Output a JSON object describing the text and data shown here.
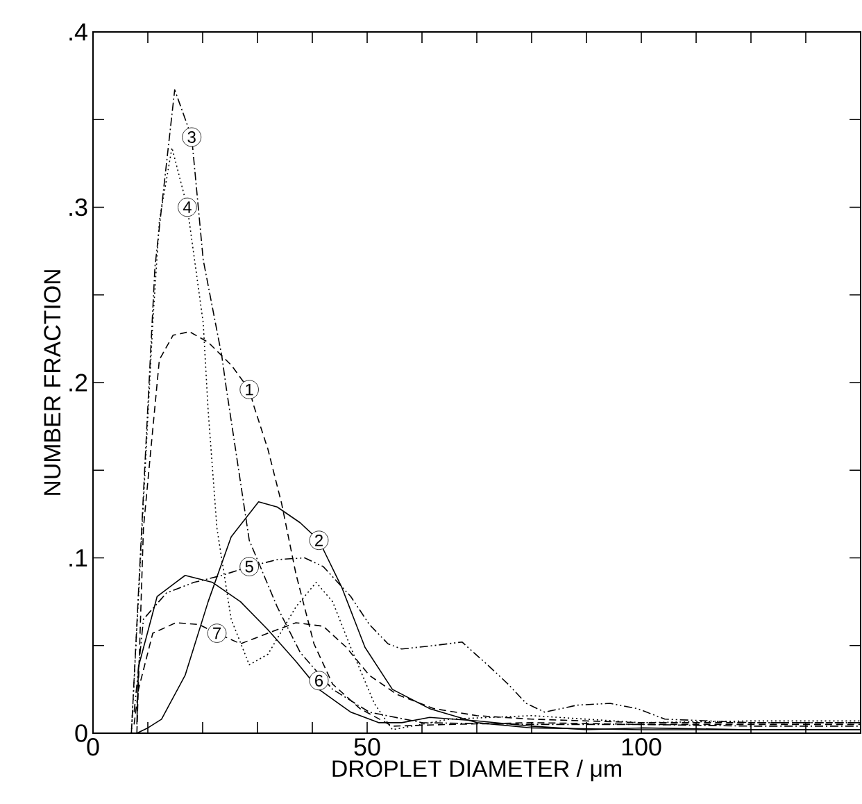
{
  "chart_data": {
    "type": "line",
    "xlabel": "DROPLET DIAMETER / μm",
    "ylabel": "NUMBER FRACTION",
    "xlim": [
      0,
      140
    ],
    "ylim": [
      0,
      0.4
    ],
    "xticks": [
      0,
      {
        "value": 10,
        "label": null
      },
      {
        "value": 20,
        "label": null
      },
      {
        "value": 30,
        "label": null
      },
      {
        "value": 40,
        "label": null
      },
      50,
      {
        "value": 60,
        "label": null
      },
      {
        "value": 70,
        "label": null
      },
      {
        "value": 80,
        "label": null
      },
      {
        "value": 90,
        "label": null
      },
      100,
      {
        "value": 110,
        "label": null
      },
      {
        "value": 120,
        "label": null
      },
      {
        "value": 130,
        "label": null
      }
    ],
    "yticks": [
      0,
      {
        "value": 0.05,
        "label": null
      },
      {
        "value": 0.1,
        "label": ".1"
      },
      {
        "value": 0.15,
        "label": null
      },
      {
        "value": 0.2,
        "label": ".2"
      },
      {
        "value": 0.25,
        "label": null
      },
      {
        "value": 0.3,
        "label": ".3"
      },
      {
        "value": 0.35,
        "label": null
      },
      {
        "value": 0.4,
        "label": ".4"
      }
    ],
    "grid": false,
    "legend": false,
    "marker": "none",
    "series": [
      {
        "name": "1",
        "color": "#000000",
        "line_style": "dashed",
        "x": [
          8,
          9.2,
          12.1,
          14.6,
          17.6,
          21,
          25.2,
          28.5,
          29.4,
          31.9,
          34.4,
          37,
          40.3,
          43.7,
          48.7,
          54.6,
          65,
          80,
          100,
          120,
          140
        ],
        "values": [
          0,
          0.117,
          0.213,
          0.227,
          0.229,
          0.223,
          0.21,
          0.196,
          0.186,
          0.162,
          0.131,
          0.091,
          0.051,
          0.028,
          0.014,
          0.004,
          0.005,
          0.006,
          0.005,
          0.005,
          0.005
        ]
      },
      {
        "name": "2",
        "color": "#000000",
        "line_style": "solid",
        "x": [
          8,
          10,
          12.5,
          16.8,
          21,
          25.2,
          30.2,
          33.6,
          37.8,
          41.2,
          45.4,
          49.6,
          54.6,
          61.4,
          70,
          80,
          100,
          120,
          140
        ],
        "values": [
          0,
          0.003,
          0.008,
          0.033,
          0.075,
          0.112,
          0.132,
          0.129,
          0.12,
          0.11,
          0.083,
          0.049,
          0.025,
          0.014,
          0.006,
          0.003,
          0.002,
          0.002,
          0.002
        ]
      },
      {
        "name": "3",
        "color": "#000000",
        "line_style": "dashdot",
        "x": [
          7,
          10,
          11.3,
          14.9,
          18,
          20.1,
          23.5,
          24.3,
          28.5,
          33.6,
          37.8,
          43.7,
          50.4,
          60,
          80,
          100,
          120,
          140
        ],
        "values": [
          0,
          0.186,
          0.266,
          0.367,
          0.34,
          0.27,
          0.215,
          0.197,
          0.11,
          0.072,
          0.046,
          0.025,
          0.012,
          0.006,
          0.005,
          0.005,
          0.004,
          0.004
        ]
      },
      {
        "name": "4",
        "color": "#000000",
        "line_style": "dotted",
        "x": [
          7,
          10.9,
          12.1,
          14.4,
          17.2,
          20.1,
          21,
          22.6,
          25.2,
          28.5,
          31.9,
          37,
          40.7,
          43.7,
          47,
          51.3,
          54.6,
          65,
          80,
          100,
          120,
          140
        ],
        "values": [
          0,
          0.234,
          0.292,
          0.334,
          0.3,
          0.234,
          0.184,
          0.117,
          0.065,
          0.039,
          0.045,
          0.072,
          0.086,
          0.075,
          0.049,
          0.017,
          0.002,
          0.008,
          0.01,
          0.006,
          0.007,
          0.007
        ]
      },
      {
        "name": "5",
        "color": "#000000",
        "line_style": "dashdotdot",
        "x": [
          7.5,
          9.2,
          13.4,
          18.4,
          23.5,
          28.5,
          33.6,
          38.6,
          42,
          47,
          50.4,
          53.8,
          56.3,
          62.2,
          67.3,
          72.3,
          75.7,
          79,
          82.4,
          88.3,
          94.3,
          99.3,
          104.3,
          120,
          140
        ],
        "values": [
          0.012,
          0.065,
          0.08,
          0.086,
          0.09,
          0.095,
          0.099,
          0.1,
          0.095,
          0.078,
          0.062,
          0.051,
          0.048,
          0.05,
          0.052,
          0.038,
          0.028,
          0.017,
          0.012,
          0.016,
          0.017,
          0.014,
          0.008,
          0.006,
          0.006
        ]
      },
      {
        "name": "6",
        "color": "#000000",
        "line_style": "solid",
        "x": [
          8,
          8.3,
          11.7,
          16.8,
          21.8,
          26.9,
          31.9,
          37,
          41.2,
          47,
          52.1,
          56.3,
          61.4,
          70,
          80,
          90,
          100,
          120,
          140
        ],
        "values": [
          0.005,
          0.038,
          0.078,
          0.09,
          0.086,
          0.075,
          0.059,
          0.041,
          0.025,
          0.012,
          0.006,
          0.006,
          0.009,
          0.007,
          0.004,
          0.002,
          0.003,
          0.002,
          0.002
        ]
      },
      {
        "name": "7",
        "color": "#000000",
        "line_style": "dashed",
        "x": [
          7.5,
          8.3,
          10.9,
          15.1,
          19.3,
          22.6,
          26.9,
          31.9,
          37,
          42,
          46.2,
          50.4,
          55.5,
          62.2,
          70,
          80,
          100,
          120,
          140
        ],
        "values": [
          0.005,
          0.025,
          0.057,
          0.063,
          0.062,
          0.057,
          0.051,
          0.057,
          0.063,
          0.061,
          0.049,
          0.033,
          0.022,
          0.014,
          0.01,
          0.008,
          0.006,
          0.006,
          0.006
        ]
      }
    ]
  }
}
